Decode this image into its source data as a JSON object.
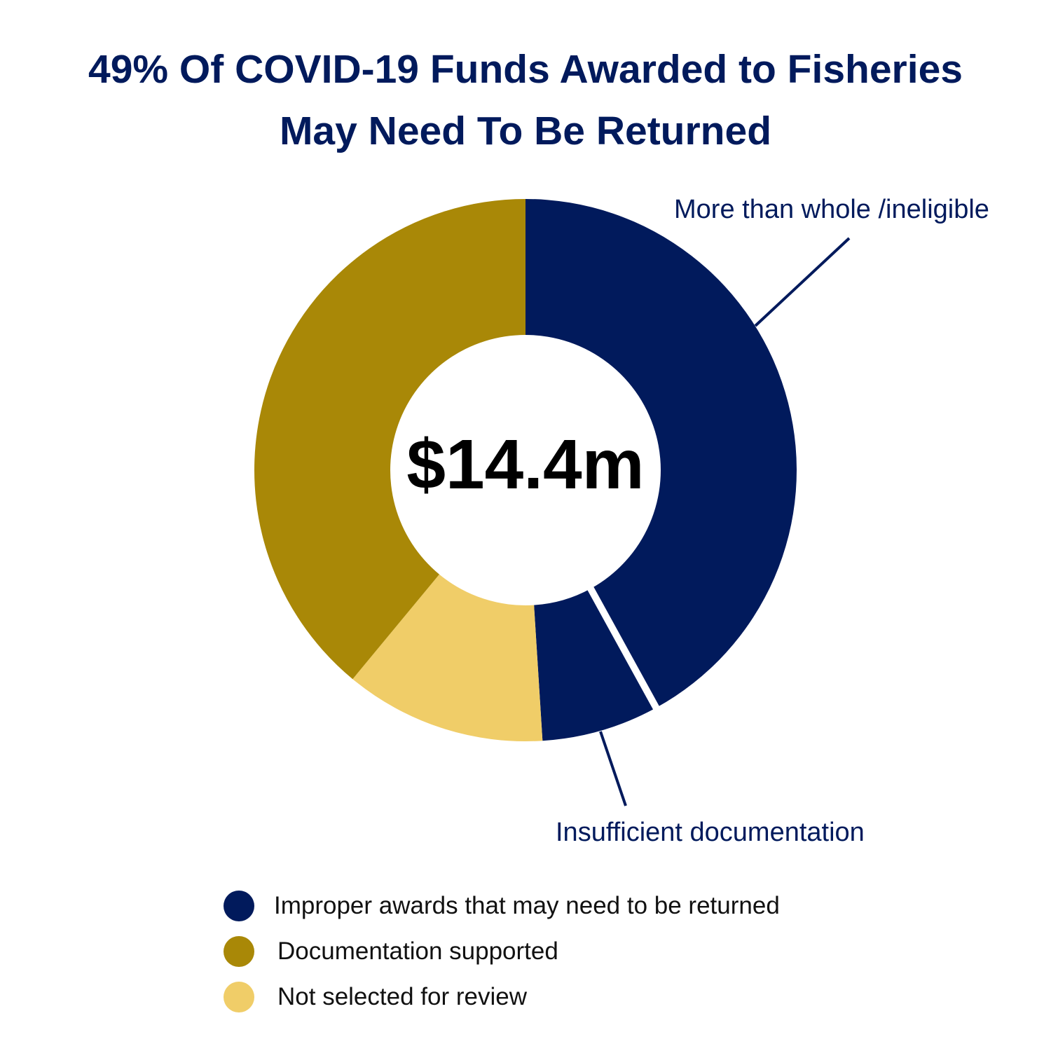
{
  "title": {
    "line1": "49% Of COVID-19 Funds Awarded to Fisheries",
    "line2": "May Need To Be Returned"
  },
  "colors": {
    "navy": "#011a5c",
    "gold": "#a98807",
    "light_gold": "#f0cd68",
    "separator": "#ffffff"
  },
  "chart_data": {
    "type": "pie",
    "variant": "donut",
    "center_label": "$14.4m",
    "slices": [
      {
        "label": "More than whole /ineligible",
        "legend_group": "Improper awards that may need to be returned",
        "value": 42,
        "color": "#011a5c"
      },
      {
        "label": "Insufficient documentation",
        "legend_group": "Improper awards that may need to be returned",
        "value": 7,
        "color": "#011a5c"
      },
      {
        "label": "Not selected for review",
        "value": 12,
        "color": "#f0cd68"
      },
      {
        "label": "Documentation supported",
        "value": 39,
        "color": "#a98807"
      }
    ],
    "callouts": [
      {
        "text": "More than whole /ineligible"
      },
      {
        "text": "Insufficient documentation"
      }
    ],
    "legend": [
      {
        "label": "Improper awards that may need to be returned",
        "color": "#011a5c"
      },
      {
        "label": "Documentation supported",
        "color": "#a98807"
      },
      {
        "label": "Not selected for review",
        "color": "#f0cd68"
      }
    ],
    "legend_position": "bottom"
  }
}
